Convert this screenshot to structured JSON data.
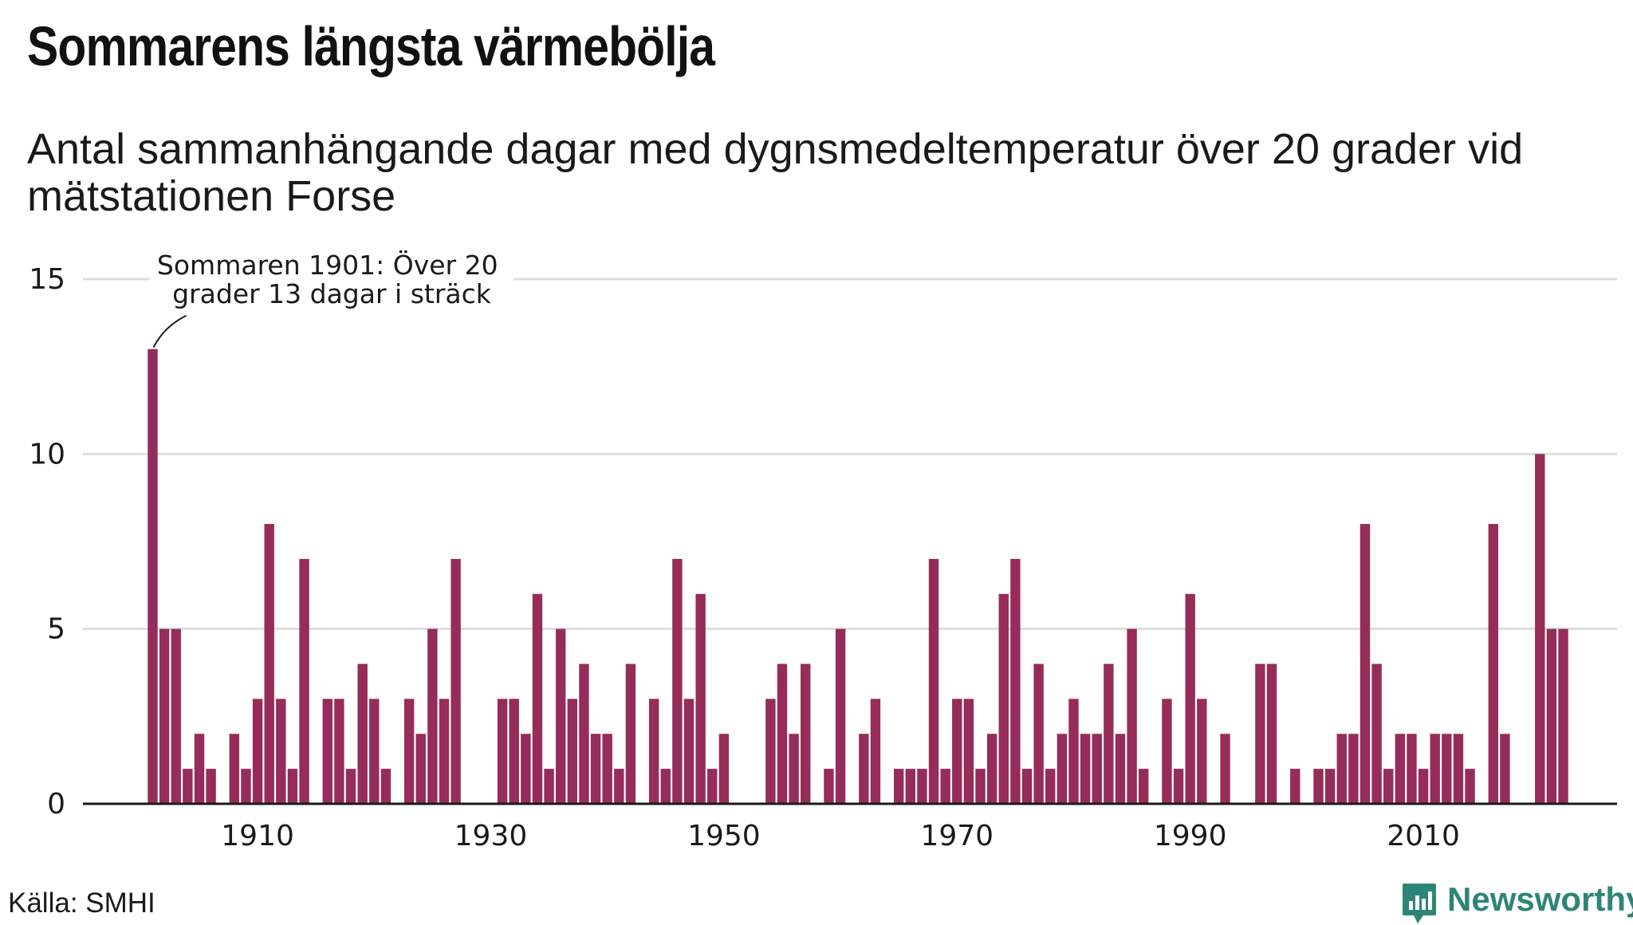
{
  "title": "Sommarens längsta värmebölja",
  "subtitle": "Antal sammanhängande dagar med dygnsmedeltemperatur över 20 grader vid mätstationen Forse",
  "source": "Källa: SMHI",
  "brand": {
    "name": "Newsworthy",
    "icon": "bar-chart-icon",
    "color": "#2e8577"
  },
  "chart_data": {
    "type": "bar",
    "title": "Sommarens längsta värmebölja",
    "subtitle": "Antal sammanhängande dagar med dygnsmedeltemperatur över 20 grader vid mätstationen Forse",
    "xlabel": "",
    "ylabel": "",
    "x_start": 1901,
    "x_ticks": [
      1910,
      1930,
      1950,
      1970,
      1990,
      2010
    ],
    "y_ticks": [
      0,
      5,
      10,
      15
    ],
    "xlim": [
      1894,
      2027
    ],
    "ylim": [
      0,
      15
    ],
    "grid": true,
    "bar_color": "#962c59",
    "values": [
      13,
      5,
      5,
      1,
      2,
      1,
      0,
      2,
      1,
      3,
      8,
      3,
      1,
      7,
      0,
      3,
      3,
      1,
      4,
      3,
      1,
      0,
      3,
      2,
      5,
      3,
      7,
      0,
      0,
      0,
      3,
      3,
      2,
      6,
      1,
      5,
      3,
      4,
      2,
      2,
      1,
      4,
      0,
      3,
      1,
      7,
      3,
      6,
      1,
      2,
      0,
      0,
      0,
      3,
      4,
      2,
      4,
      0,
      1,
      5,
      0,
      2,
      3,
      0,
      1,
      1,
      1,
      7,
      1,
      3,
      3,
      1,
      2,
      6,
      7,
      1,
      4,
      1,
      2,
      3,
      2,
      2,
      4,
      2,
      5,
      1,
      0,
      3,
      1,
      6,
      3,
      0,
      2,
      0,
      0,
      4,
      4,
      0,
      1,
      0,
      1,
      1,
      2,
      2,
      8,
      4,
      1,
      2,
      2,
      1,
      2,
      2,
      2,
      1,
      0,
      8,
      2,
      0,
      0,
      10,
      5,
      5
    ],
    "annotation": {
      "year": 1901,
      "value": 13,
      "lines": [
        "Sommaren 1901: Över 20",
        "grader 13 dagar i sträck"
      ]
    }
  }
}
